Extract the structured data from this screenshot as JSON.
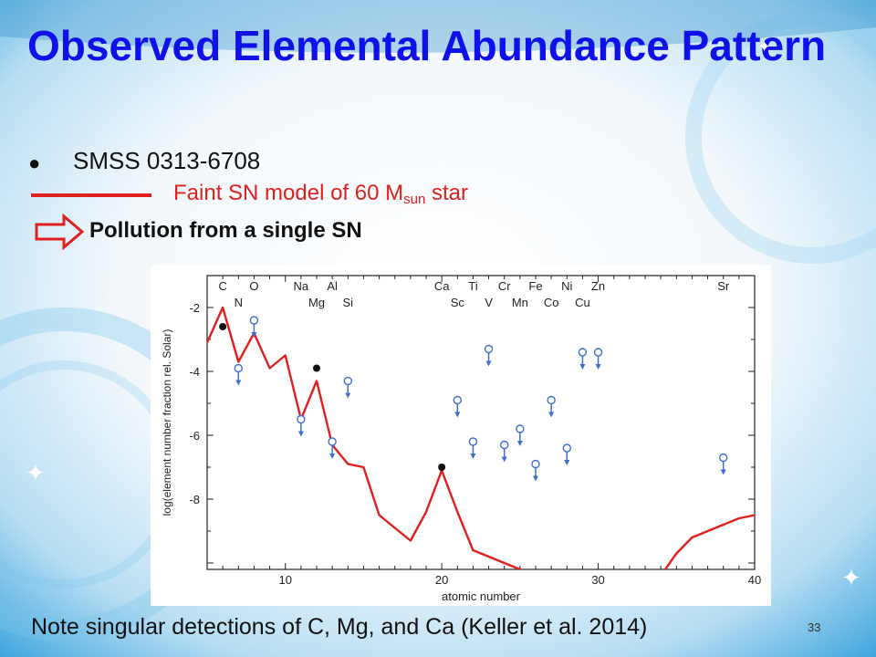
{
  "slide": {
    "title": "Observed Elemental Abundance Pattern",
    "bullet": "SMSS 0313-6708",
    "model_label_pre": "Faint SN model of 60 M",
    "model_label_sub": "sun",
    "model_label_post": " star",
    "pollution_label": "Pollution from a single SN",
    "note": "Note singular detections of C, Mg, and Ca (Keller et al. 2014)",
    "page_number": "33",
    "colors": {
      "title": "#1010e8",
      "model_line": "#e01f1f",
      "background": "#3a9fd6",
      "upper_limit": "#3f6fce"
    }
  },
  "chart_data": {
    "type": "line",
    "xlabel": "atomic number",
    "ylabel": "log(element number fraction rel. Solar)",
    "xlim": [
      5,
      40
    ],
    "ylim": [
      -10.2,
      -1.0
    ],
    "x_ticks": [
      10,
      20,
      30,
      40
    ],
    "y_ticks": [
      -2,
      -4,
      -6,
      -8
    ],
    "grid": false,
    "element_labels_top": [
      {
        "z": 6,
        "symbol": "C"
      },
      {
        "z": 8,
        "symbol": "O"
      },
      {
        "z": 11,
        "symbol": "Na"
      },
      {
        "z": 13,
        "symbol": "Al"
      },
      {
        "z": 20,
        "symbol": "Ca"
      },
      {
        "z": 22,
        "symbol": "Ti"
      },
      {
        "z": 24,
        "symbol": "Cr"
      },
      {
        "z": 26,
        "symbol": "Fe"
      },
      {
        "z": 28,
        "symbol": "Ni"
      },
      {
        "z": 30,
        "symbol": "Zn"
      },
      {
        "z": 38,
        "symbol": "Sr"
      }
    ],
    "element_labels_bottom": [
      {
        "z": 7,
        "symbol": "N"
      },
      {
        "z": 12,
        "symbol": "Mg"
      },
      {
        "z": 14,
        "symbol": "Si"
      },
      {
        "z": 21,
        "symbol": "Sc"
      },
      {
        "z": 23,
        "symbol": "V"
      },
      {
        "z": 25,
        "symbol": "Mn"
      },
      {
        "z": 27,
        "symbol": "Co"
      },
      {
        "z": 29,
        "symbol": "Cu"
      }
    ],
    "model_line": {
      "x": [
        5,
        6,
        7,
        8,
        9,
        10,
        11,
        12,
        13,
        14,
        15,
        16,
        17,
        18,
        19,
        20,
        21,
        22,
        23,
        24,
        25,
        26,
        27,
        28,
        29,
        30,
        31,
        32,
        33,
        34,
        35,
        36,
        37,
        38,
        39,
        40
      ],
      "y": [
        -3.1,
        -2.0,
        -3.7,
        -2.8,
        -3.9,
        -3.5,
        -5.5,
        -4.3,
        -6.3,
        -6.9,
        -7.0,
        -8.5,
        -8.9,
        -9.3,
        -8.4,
        -7.1,
        -8.4,
        -9.6,
        -9.8,
        -10.0,
        -10.2,
        -10.4,
        -10.6,
        -10.8,
        -11.0,
        -11.1,
        -11.0,
        -10.9,
        -10.7,
        -10.4,
        -9.7,
        -9.2,
        -9.0,
        -8.8,
        -8.6,
        -8.5
      ]
    },
    "detections": [
      {
        "z": 6,
        "value": -2.6
      },
      {
        "z": 12,
        "value": -3.9
      },
      {
        "z": 20,
        "value": -7.0
      }
    ],
    "upper_limits": [
      {
        "z": 7,
        "value": -3.9
      },
      {
        "z": 8,
        "value": -2.4
      },
      {
        "z": 11,
        "value": -5.5
      },
      {
        "z": 13,
        "value": -6.2
      },
      {
        "z": 14,
        "value": -4.3
      },
      {
        "z": 21,
        "value": -4.9
      },
      {
        "z": 22,
        "value": -6.2
      },
      {
        "z": 23,
        "value": -3.3
      },
      {
        "z": 24,
        "value": -6.3
      },
      {
        "z": 25,
        "value": -5.8
      },
      {
        "z": 26,
        "value": -6.9
      },
      {
        "z": 27,
        "value": -4.9
      },
      {
        "z": 28,
        "value": -6.4
      },
      {
        "z": 29,
        "value": -3.4
      },
      {
        "z": 30,
        "value": -3.4
      },
      {
        "z": 38,
        "value": -6.7
      }
    ]
  }
}
